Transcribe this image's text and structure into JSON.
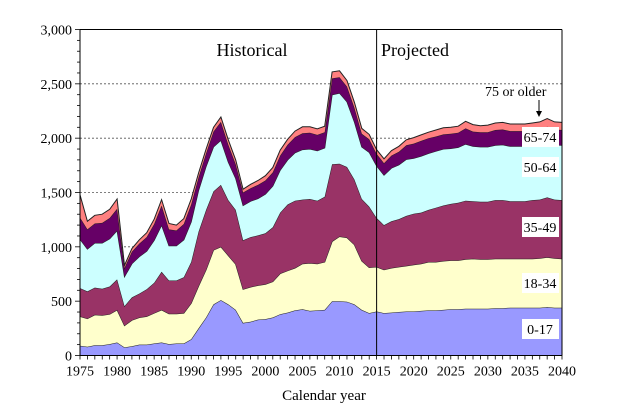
{
  "chart_data": {
    "type": "area",
    "stacked": true,
    "title": "",
    "xlabel": "Calendar year",
    "ylabel": "",
    "xlim": [
      1975,
      2040
    ],
    "ylim": [
      0,
      3000
    ],
    "grid": "horizontal-dotted",
    "x_ticks": [
      "1975",
      "1980",
      "1985",
      "1990",
      "1995",
      "2000",
      "2005",
      "2010",
      "2015",
      "2020",
      "2025",
      "2030",
      "2035",
      "2040"
    ],
    "y_ticks": [
      "0",
      "500",
      "1,000",
      "1,500",
      "2,000",
      "2,500",
      "3,000"
    ],
    "y_tick_values": [
      0,
      500,
      1000,
      1500,
      2000,
      2500,
      3000
    ],
    "x_tick_values": [
      1975,
      1980,
      1985,
      1990,
      1995,
      2000,
      2005,
      2010,
      2015,
      2020,
      2025,
      2030,
      2035,
      2040
    ],
    "divider_year": 2015,
    "region_labels": {
      "historical": "Historical",
      "projected": "Projected"
    },
    "annotation": {
      "text": "75 or older",
      "points_to_series": "75 or older",
      "year": 2037
    },
    "x": [
      1975,
      1976,
      1977,
      1978,
      1979,
      1980,
      1981,
      1982,
      1983,
      1984,
      1985,
      1986,
      1987,
      1988,
      1989,
      1990,
      1991,
      1992,
      1993,
      1994,
      1995,
      1996,
      1997,
      1998,
      1999,
      2000,
      2001,
      2002,
      2003,
      2004,
      2005,
      2006,
      2007,
      2008,
      2009,
      2010,
      2011,
      2012,
      2013,
      2014,
      2015,
      2016,
      2017,
      2018,
      2019,
      2020,
      2021,
      2022,
      2023,
      2024,
      2025,
      2026,
      2027,
      2028,
      2029,
      2030,
      2031,
      2032,
      2033,
      2034,
      2035,
      2036,
      2037,
      2038,
      2039,
      2040
    ],
    "series": [
      {
        "name": "0-17",
        "color": "#9999ff",
        "values": [
          90,
          80,
          95,
          95,
          105,
          120,
          75,
          85,
          100,
          100,
          110,
          120,
          105,
          110,
          110,
          150,
          250,
          350,
          470,
          510,
          470,
          420,
          300,
          310,
          330,
          335,
          350,
          380,
          395,
          415,
          425,
          410,
          415,
          420,
          500,
          500,
          495,
          470,
          420,
          390,
          405,
          390,
          395,
          400,
          405,
          405,
          410,
          415,
          415,
          420,
          425,
          425,
          430,
          430,
          430,
          430,
          435,
          435,
          440,
          440,
          440,
          440,
          440,
          445,
          440,
          440
        ]
      },
      {
        "name": "18-34",
        "color": "#ffffcc",
        "values": [
          270,
          260,
          280,
          275,
          275,
          300,
          200,
          240,
          250,
          260,
          280,
          300,
          280,
          275,
          280,
          330,
          390,
          440,
          500,
          490,
          450,
          420,
          310,
          320,
          315,
          320,
          330,
          375,
          385,
          390,
          420,
          440,
          430,
          440,
          550,
          595,
          590,
          550,
          450,
          420,
          410,
          400,
          410,
          415,
          420,
          430,
          435,
          445,
          445,
          450,
          450,
          450,
          455,
          460,
          455,
          455,
          455,
          455,
          450,
          450,
          450,
          450,
          455,
          460,
          455,
          450
        ]
      },
      {
        "name": "35-49",
        "color": "#993366",
        "values": [
          260,
          250,
          250,
          245,
          255,
          280,
          180,
          210,
          220,
          250,
          280,
          350,
          305,
          305,
          330,
          380,
          500,
          550,
          540,
          570,
          510,
          500,
          450,
          460,
          460,
          470,
          500,
          560,
          610,
          620,
          590,
          590,
          580,
          600,
          710,
          670,
          650,
          600,
          570,
          560,
          450,
          410,
          430,
          440,
          460,
          470,
          470,
          480,
          500,
          510,
          520,
          530,
          540,
          530,
          530,
          530,
          540,
          540,
          530,
          530,
          530,
          540,
          540,
          550,
          540,
          540
        ]
      },
      {
        "name": "50-64",
        "color": "#ccffff",
        "values": [
          450,
          390,
          410,
          420,
          440,
          450,
          270,
          310,
          340,
          350,
          390,
          430,
          320,
          320,
          345,
          370,
          380,
          400,
          410,
          410,
          350,
          290,
          320,
          330,
          340,
          360,
          380,
          390,
          410,
          440,
          460,
          460,
          460,
          450,
          640,
          650,
          600,
          530,
          480,
          500,
          480,
          460,
          490,
          500,
          520,
          510,
          520,
          520,
          520,
          520,
          510,
          510,
          520,
          505,
          505,
          505,
          505,
          510,
          505,
          505,
          505,
          505,
          505,
          505,
          505,
          505
        ]
      },
      {
        "name": "65-74",
        "color": "#660066",
        "values": [
          200,
          180,
          180,
          185,
          190,
          200,
          80,
          110,
          120,
          130,
          150,
          180,
          150,
          140,
          145,
          160,
          120,
          120,
          140,
          170,
          160,
          130,
          120,
          120,
          125,
          125,
          125,
          135,
          140,
          145,
          150,
          150,
          145,
          145,
          150,
          145,
          140,
          130,
          120,
          120,
          110,
          110,
          115,
          120,
          130,
          135,
          140,
          140,
          135,
          135,
          135,
          135,
          145,
          135,
          135,
          135,
          140,
          140,
          140,
          140,
          140,
          140,
          140,
          145,
          140,
          140
        ]
      },
      {
        "name": "75 or older",
        "color": "#ff8080",
        "values": [
          210,
          75,
          75,
          80,
          80,
          90,
          25,
          30,
          35,
          40,
          45,
          55,
          55,
          50,
          50,
          50,
          40,
          40,
          40,
          45,
          45,
          40,
          30,
          35,
          40,
          45,
          45,
          50,
          50,
          55,
          60,
          55,
          55,
          55,
          60,
          60,
          55,
          50,
          50,
          45,
          40,
          40,
          45,
          50,
          50,
          55,
          55,
          55,
          60,
          60,
          60,
          60,
          65,
          65,
          60,
          65,
          65,
          65,
          65,
          65,
          65,
          65,
          70,
          75,
          70,
          70
        ]
      }
    ]
  }
}
